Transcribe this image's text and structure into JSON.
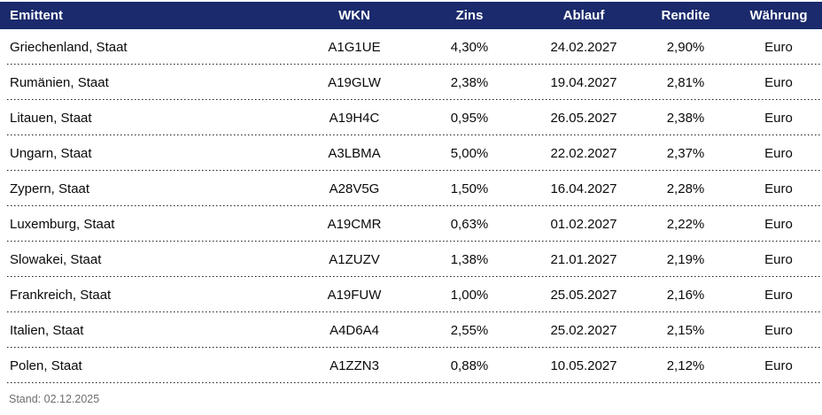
{
  "table": {
    "columns": [
      "Emittent",
      "WKN",
      "Zins",
      "Ablauf",
      "Rendite",
      "Währung"
    ],
    "rows": [
      {
        "emittent": "Griechenland, Staat",
        "wkn": "A1G1UE",
        "zins": "4,30%",
        "ablauf": "24.02.2027",
        "rendite": "2,90%",
        "waehrung": "Euro"
      },
      {
        "emittent": "Rumänien, Staat",
        "wkn": "A19GLW",
        "zins": "2,38%",
        "ablauf": "19.04.2027",
        "rendite": "2,81%",
        "waehrung": "Euro"
      },
      {
        "emittent": "Litauen, Staat",
        "wkn": "A19H4C",
        "zins": "0,95%",
        "ablauf": "26.05.2027",
        "rendite": "2,38%",
        "waehrung": "Euro"
      },
      {
        "emittent": "Ungarn, Staat",
        "wkn": "A3LBMA",
        "zins": "5,00%",
        "ablauf": "22.02.2027",
        "rendite": "2,37%",
        "waehrung": "Euro"
      },
      {
        "emittent": "Zypern, Staat",
        "wkn": "A28V5G",
        "zins": "1,50%",
        "ablauf": "16.04.2027",
        "rendite": "2,28%",
        "waehrung": "Euro"
      },
      {
        "emittent": "Luxemburg, Staat",
        "wkn": "A19CMR",
        "zins": "0,63%",
        "ablauf": "01.02.2027",
        "rendite": "2,22%",
        "waehrung": "Euro"
      },
      {
        "emittent": "Slowakei, Staat",
        "wkn": "A1ZUZV",
        "zins": "1,38%",
        "ablauf": "21.01.2027",
        "rendite": "2,19%",
        "waehrung": "Euro"
      },
      {
        "emittent": "Frankreich, Staat",
        "wkn": "A19FUW",
        "zins": "1,00%",
        "ablauf": "25.05.2027",
        "rendite": "2,16%",
        "waehrung": "Euro"
      },
      {
        "emittent": "Italien, Staat",
        "wkn": "A4D6A4",
        "zins": "2,55%",
        "ablauf": "25.02.2027",
        "rendite": "2,15%",
        "waehrung": "Euro"
      },
      {
        "emittent": "Polen, Staat",
        "wkn": "A1ZZN3",
        "zins": "0,88%",
        "ablauf": "10.05.2027",
        "rendite": "2,12%",
        "waehrung": "Euro"
      }
    ]
  },
  "footer": {
    "stand_label": "Stand: 02.12.2025"
  },
  "colors": {
    "header_bg": "#1a2a6c",
    "header_text": "#ffffff",
    "body_text": "#0a0a0a",
    "separator": "#1c1c1c",
    "footer_text": "#6e6e6e"
  },
  "chart_data": {
    "type": "table",
    "title": "",
    "columns": [
      "Emittent",
      "WKN",
      "Zins",
      "Ablauf",
      "Rendite",
      "Währung"
    ],
    "rows": [
      [
        "Griechenland, Staat",
        "A1G1UE",
        "4,30%",
        "24.02.2027",
        "2,90%",
        "Euro"
      ],
      [
        "Rumänien, Staat",
        "A19GLW",
        "2,38%",
        "19.04.2027",
        "2,81%",
        "Euro"
      ],
      [
        "Litauen, Staat",
        "A19H4C",
        "0,95%",
        "26.05.2027",
        "2,38%",
        "Euro"
      ],
      [
        "Ungarn, Staat",
        "A3LBMA",
        "5,00%",
        "22.02.2027",
        "2,37%",
        "Euro"
      ],
      [
        "Zypern, Staat",
        "A28V5G",
        "1,50%",
        "16.04.2027",
        "2,28%",
        "Euro"
      ],
      [
        "Luxemburg, Staat",
        "A19CMR",
        "0,63%",
        "01.02.2027",
        "2,22%",
        "Euro"
      ],
      [
        "Slowakei, Staat",
        "A1ZUZV",
        "1,38%",
        "21.01.2027",
        "2,19%",
        "Euro"
      ],
      [
        "Frankreich, Staat",
        "A19FUW",
        "1,00%",
        "25.05.2027",
        "2,16%",
        "Euro"
      ],
      [
        "Italien, Staat",
        "A4D6A4",
        "2,55%",
        "25.02.2027",
        "2,15%",
        "Euro"
      ],
      [
        "Polen, Staat",
        "A1ZZN3",
        "0,88%",
        "10.05.2027",
        "2,12%",
        "Euro"
      ]
    ],
    "annotations": [
      "Stand: 02.12.2025"
    ],
    "layout": {
      "header_bg": "#1a2a6c",
      "row_separator": "dotted"
    }
  }
}
